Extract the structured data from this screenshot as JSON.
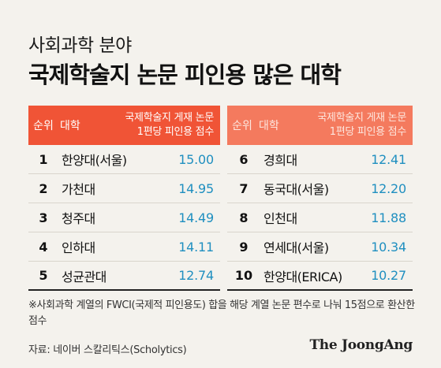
{
  "header": {
    "subtitle": "사회과학 분야",
    "title": "국제학술지 논문 피인용 많은 대학"
  },
  "table": {
    "col_rank": "순위",
    "col_name": "대학",
    "col_value_line1": "국제학술지 게재 논문",
    "col_value_line2": "1편당 피인용 점수",
    "left_rows": [
      {
        "rank": "1",
        "name": "한양대(서울)",
        "value": "15.00"
      },
      {
        "rank": "2",
        "name": "가천대",
        "value": "14.95"
      },
      {
        "rank": "3",
        "name": "청주대",
        "value": "14.49"
      },
      {
        "rank": "4",
        "name": "인하대",
        "value": "14.11"
      },
      {
        "rank": "5",
        "name": "성균관대",
        "value": "12.74"
      }
    ],
    "right_rows": [
      {
        "rank": "6",
        "name": "경희대",
        "value": "12.41"
      },
      {
        "rank": "7",
        "name": "동국대(서울)",
        "value": "12.20"
      },
      {
        "rank": "8",
        "name": "인천대",
        "value": "11.88"
      },
      {
        "rank": "9",
        "name": "연세대(서울)",
        "value": "10.34"
      },
      {
        "rank": "10",
        "name": "한양대(ERICA)",
        "value": "10.27"
      }
    ]
  },
  "note": "※사회과학 계열의 FWCI(국제적 피인용도) 합을 해당 계열 논문 편수로 나눠 15점으로 환산한 점수",
  "source": "자료: 네이버 스칼리틱스(Scholytics)",
  "brand": "The JoongAng",
  "colors": {
    "header": "#f05436",
    "value": "#1f8fc0",
    "background": "#f4f2ed"
  }
}
